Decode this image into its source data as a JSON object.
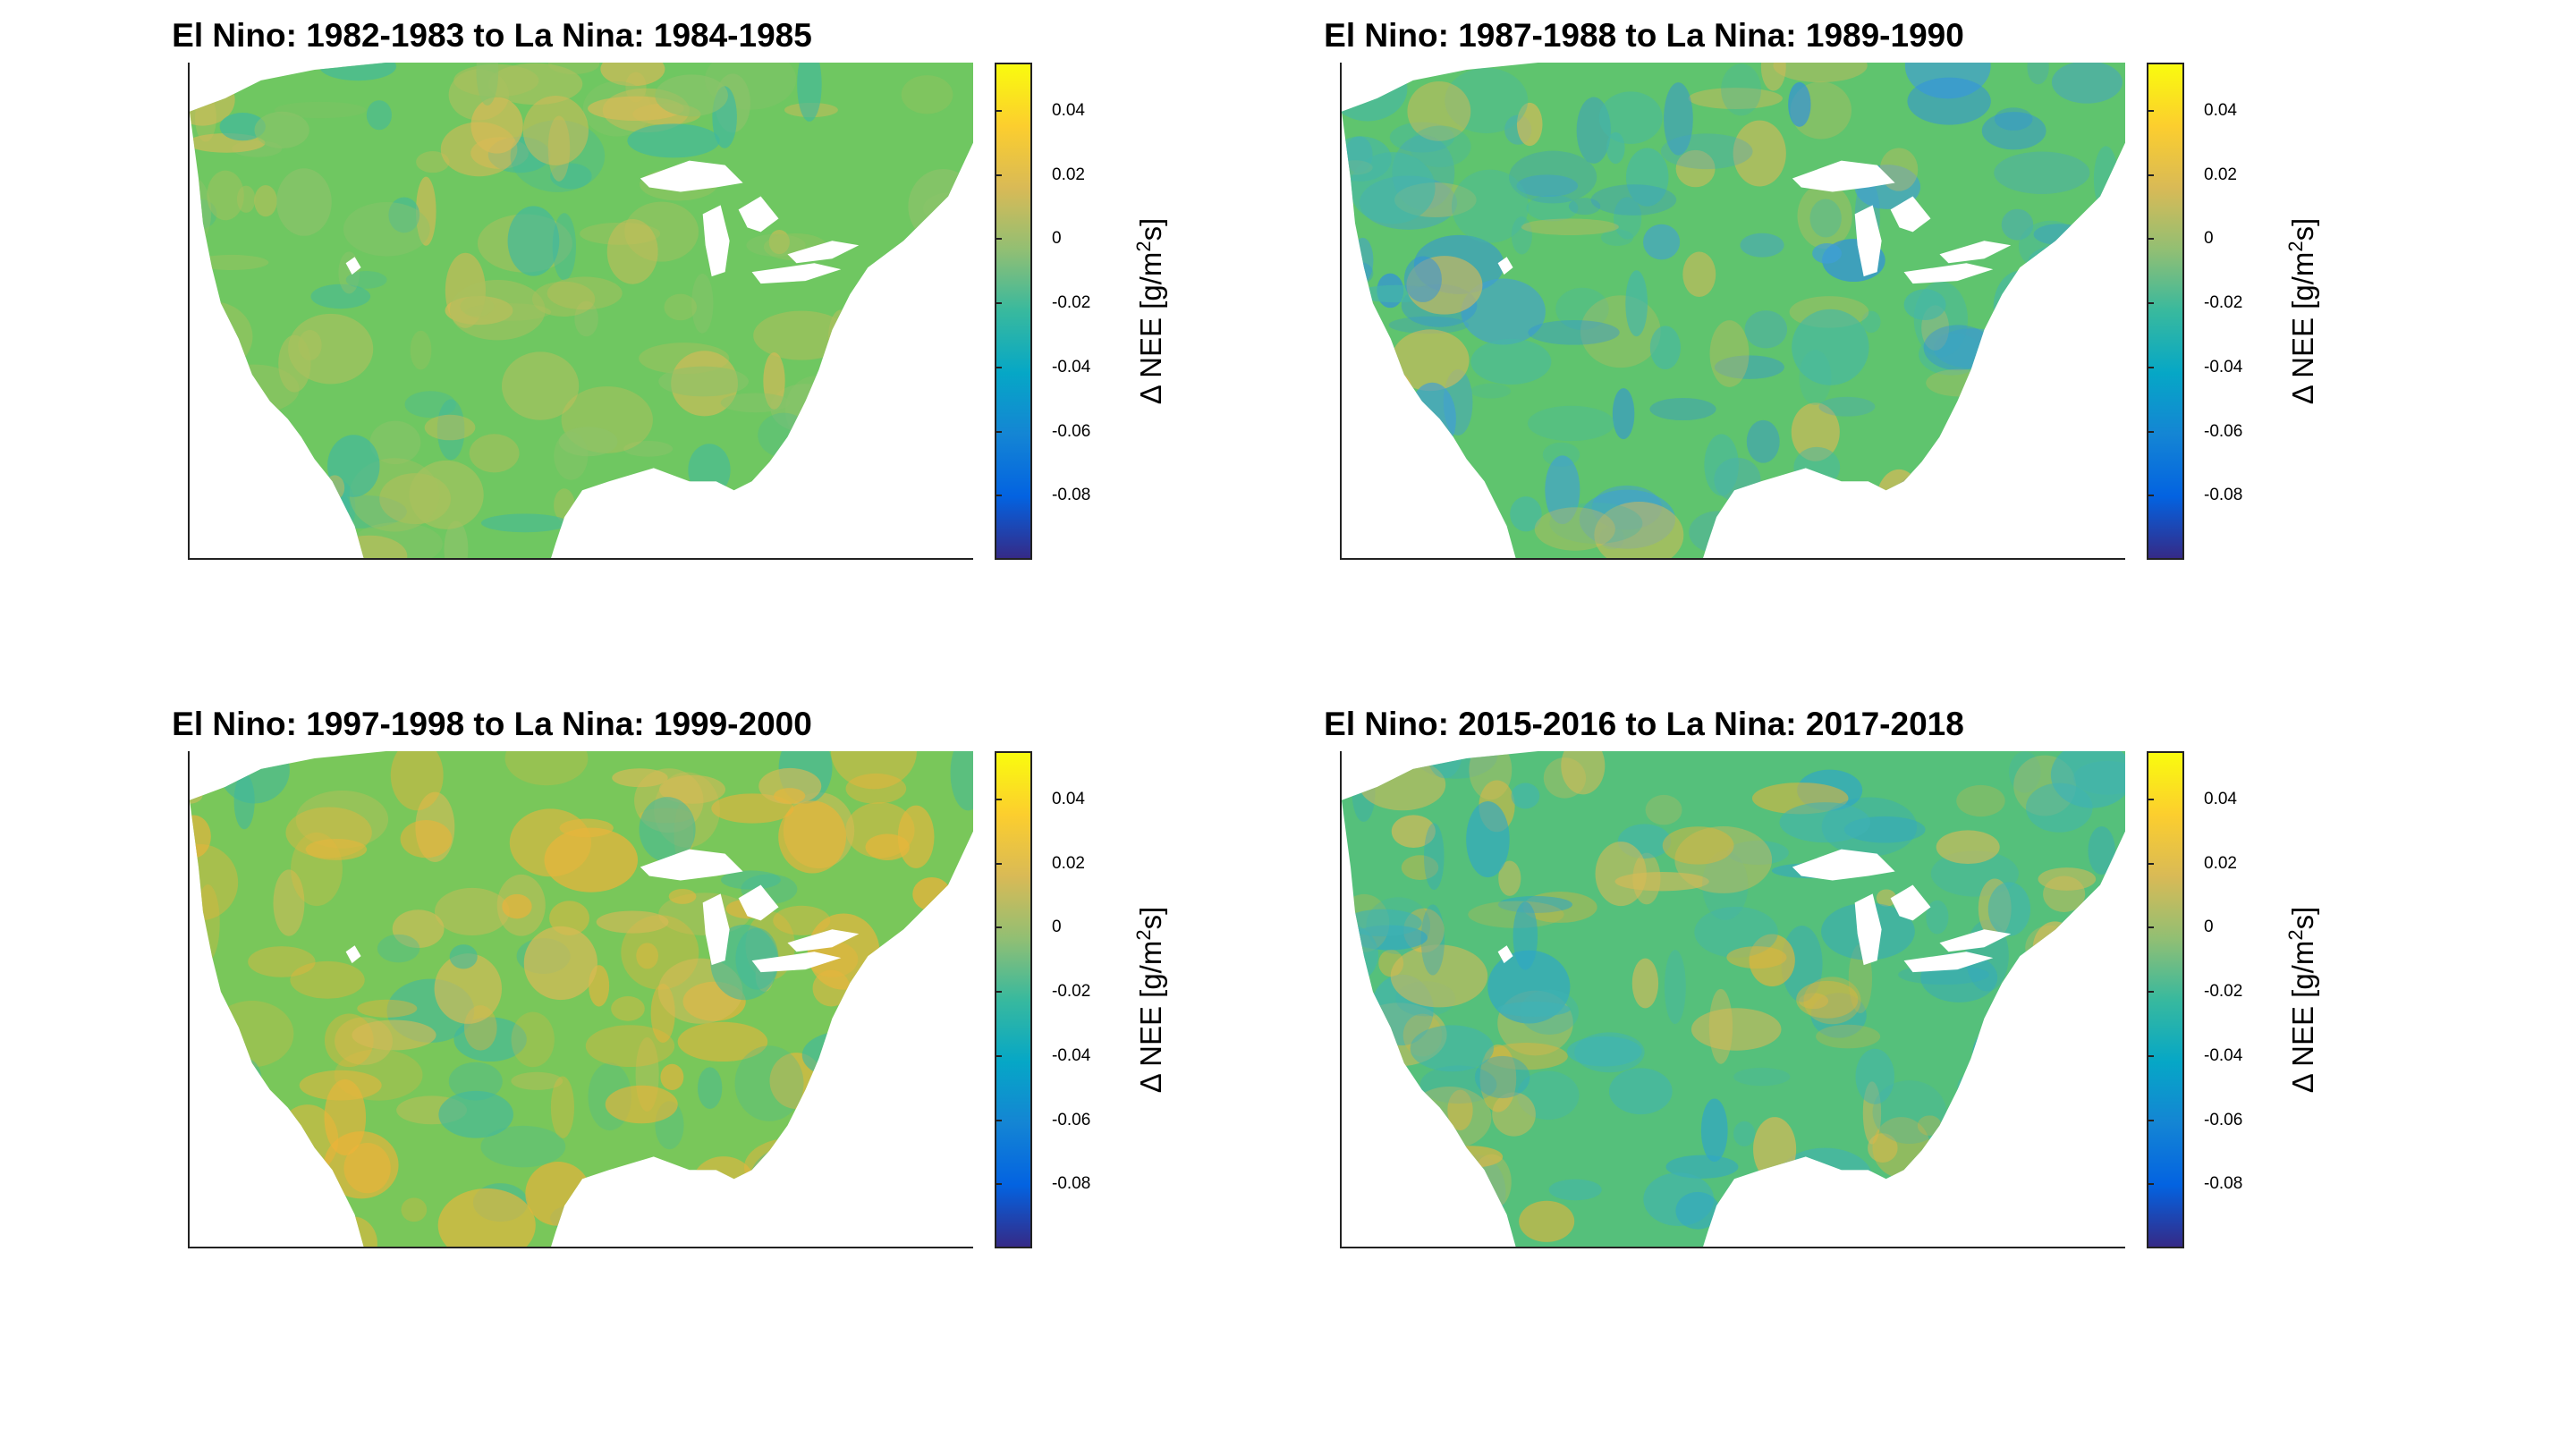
{
  "figure": {
    "colorbar": {
      "label_prefix": "Δ NEE [g/m",
      "label_superscript": "2",
      "label_suffix": "s]",
      "range": [
        -0.1,
        0.055
      ],
      "ticks": [
        "0.04",
        "0.02",
        "0",
        "-0.02",
        "-0.04",
        "-0.06",
        "-0.08"
      ],
      "tick_values": [
        0.04,
        0.02,
        0,
        -0.02,
        -0.04,
        -0.06,
        -0.08
      ],
      "colormap": [
        "#352a87",
        "#0363e1",
        "#1485d4",
        "#06a7c6",
        "#38b99e",
        "#92bf73",
        "#d9ba56",
        "#fcce2e",
        "#f9fb0e"
      ]
    }
  },
  "chart_data": [
    {
      "type": "heatmap",
      "title": "El Nino: 1982-1983 to La Nina: 1984-1985",
      "region": "Contiguous United States",
      "value_range": [
        -0.1,
        0.055
      ],
      "base_color": "#6fc761",
      "dominant_anomaly": "slightly positive (orange) in California, Texas, Florida; slightly negative (teal) in Midwest"
    },
    {
      "type": "heatmap",
      "title": "El Nino: 1987-1988 to La Nina: 1989-1990",
      "region": "Contiguous United States",
      "value_range": [
        -0.1,
        0.055
      ],
      "base_color": "#5fc46e",
      "dominant_anomaly": "negative (blue) over Midwest and Great Lakes; positive in south Texas and Florida"
    },
    {
      "type": "heatmap",
      "title": "El Nino: 1997-1998 to La Nina: 1999-2000",
      "region": "Contiguous United States",
      "value_range": [
        -0.1,
        0.055
      ],
      "base_color": "#79c75a",
      "dominant_anomaly": "positive (orange) across Southeast and Mississippi valley; negative in northern plains"
    },
    {
      "type": "heatmap",
      "title": "El Nino: 2015-2016 to La Nina: 2017-2018",
      "region": "Contiguous United States",
      "value_range": [
        -0.1,
        0.055
      ],
      "base_color": "#55c07b",
      "dominant_anomaly": "positive (orange) in central plains and Texas; negative (teal/blue) in north and Great Lakes"
    }
  ]
}
